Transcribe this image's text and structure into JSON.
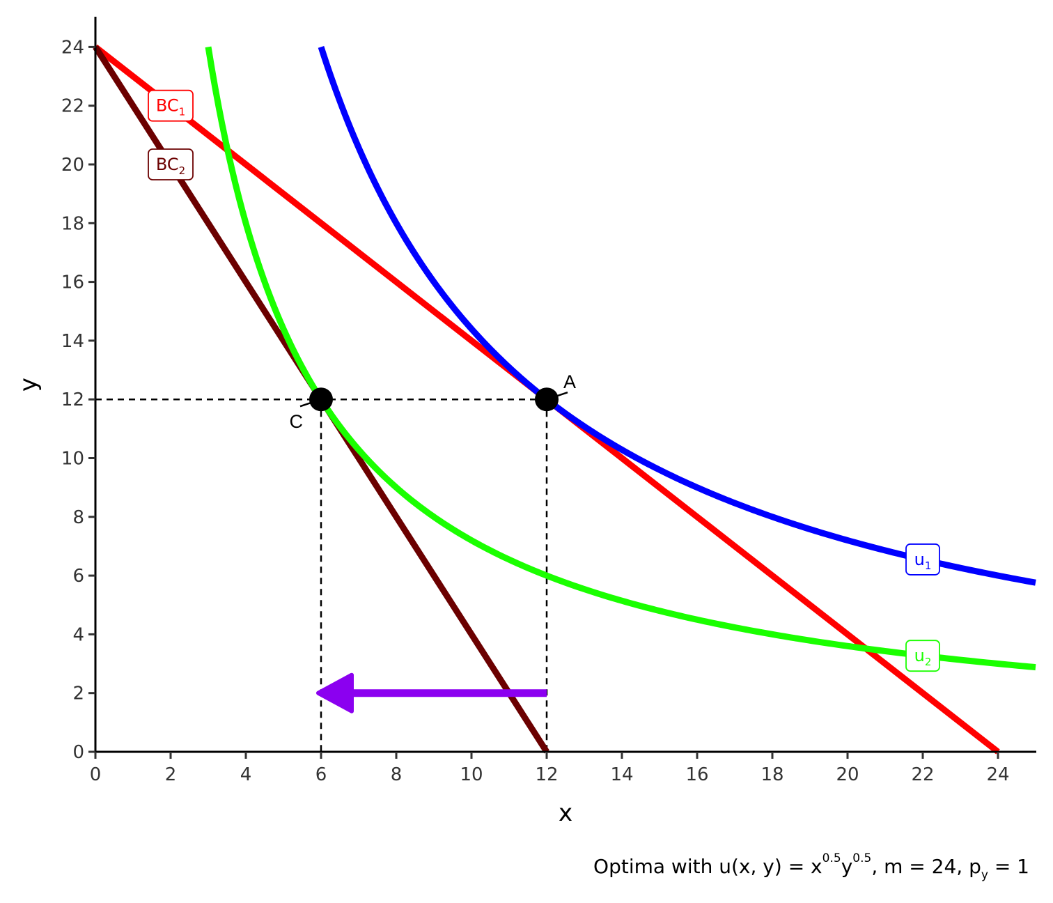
{
  "chart_data": {
    "type": "line",
    "xlabel": "x",
    "ylabel": "y",
    "xlim": [
      0,
      25
    ],
    "ylim": [
      0,
      24
    ],
    "x_ticks": [
      "0",
      "2",
      "4",
      "6",
      "8",
      "10",
      "12",
      "14",
      "16",
      "18",
      "20",
      "22",
      "24"
    ],
    "y_ticks": [
      "0",
      "2",
      "4",
      "6",
      "8",
      "10",
      "12",
      "14",
      "16",
      "18",
      "20",
      "22",
      "24"
    ],
    "grid": false,
    "colors": {
      "bc1": "#ff0000",
      "bc2": "#6b0000",
      "u1": "#0000ff",
      "u2": "#1aff00",
      "arrow": "#8b00f0",
      "points": "#000000"
    },
    "budget_lines": [
      {
        "label": "BC",
        "subscript": "1",
        "color": "#ff0000",
        "x_intercept": 24,
        "y_intercept": 24,
        "label_at": [
          2,
          22
        ]
      },
      {
        "label": "BC",
        "subscript": "2",
        "color": "#6b0000",
        "x_intercept": 12,
        "y_intercept": 24,
        "label_at": [
          2,
          20
        ]
      }
    ],
    "indifference_curves": [
      {
        "label": "u",
        "subscript": "1",
        "color": "#0000ff",
        "utility_product": 144,
        "x_range": [
          6,
          25
        ],
        "label_at": [
          22,
          6.55
        ]
      },
      {
        "label": "u",
        "subscript": "2",
        "color": "#1aff00",
        "utility_product": 72,
        "x_range": [
          3,
          25
        ],
        "label_at": [
          22,
          3.27
        ]
      }
    ],
    "points": [
      {
        "name": "A",
        "x": 12,
        "y": 12
      },
      {
        "name": "C",
        "x": 6,
        "y": 12
      }
    ],
    "arrow": {
      "from": [
        12,
        2
      ],
      "to": [
        6,
        2
      ]
    },
    "caption": {
      "text_before": "Optima with u",
      "func_args": "(x, y)",
      "eq": " = x",
      "exp1": "0.5",
      "y_part": "y",
      "exp2": "0.5",
      "after": ", m = 24, p",
      "p_sub": "y",
      "tail": " = 1"
    }
  }
}
